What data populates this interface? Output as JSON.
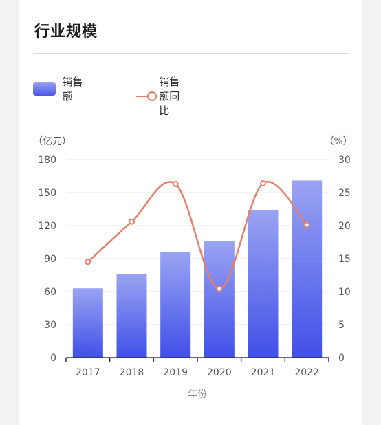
{
  "title": "行业规模",
  "legend": {
    "bar_label": "销售额",
    "line_label": "销售额同比"
  },
  "colors": {
    "bar_top": "#9aa4f2",
    "bar_bottom": "#4050e8",
    "line": "#e57f6a",
    "grid": "#e6e6e6",
    "text": "#555555"
  },
  "chart_data": {
    "type": "bar",
    "categories": [
      "2017",
      "2018",
      "2019",
      "2020",
      "2021",
      "2022"
    ],
    "series": [
      {
        "name": "销售额",
        "type": "bar",
        "axis": "left",
        "values": [
          63,
          76,
          96,
          106,
          134,
          161
        ]
      },
      {
        "name": "销售额同比",
        "type": "line",
        "axis": "right",
        "values": [
          14.5,
          20.6,
          26.3,
          10.4,
          26.4,
          20.1
        ]
      }
    ],
    "xlabel": "年份",
    "ylabel_left": "（亿元）",
    "ylabel_right": "（%）",
    "ylim_left": [
      0,
      180
    ],
    "yticks_left": [
      "0",
      "30",
      "60",
      "90",
      "120",
      "150",
      "180"
    ],
    "ylim_right": [
      0,
      30
    ],
    "yticks_right": [
      "0",
      "5",
      "10",
      "15",
      "20",
      "25",
      "30"
    ],
    "grid": true,
    "legend_position": "top-left"
  }
}
